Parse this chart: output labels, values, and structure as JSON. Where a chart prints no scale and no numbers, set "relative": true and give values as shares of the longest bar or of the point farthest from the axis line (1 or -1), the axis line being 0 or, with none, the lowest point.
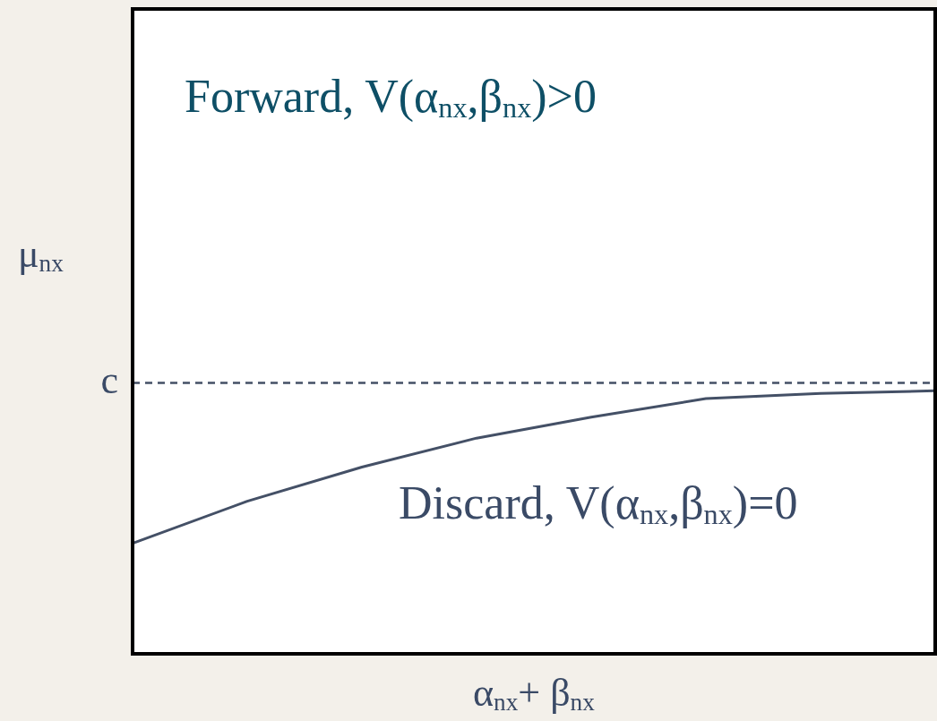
{
  "chart_data": {
    "type": "line",
    "relative": true,
    "xlabel": "α$_{nx}$+ β$_{nx}$",
    "ylabel": "μ$_{nx}$",
    "categories": [
      null,
      null,
      null,
      null,
      null,
      null,
      null,
      null
    ],
    "series": [
      {
        "color": "#445066",
        "values": [
          0.42,
          0.58,
          0.71,
          0.82,
          0.9,
          0.97,
          0.99,
          1.0
        ]
      }
    ],
    "ref_lines": [
      {
        "axis": "y",
        "value": 1.03,
        "label": "c",
        "color": "#445066",
        "line_style": "dashed"
      }
    ],
    "annotations": [
      "Forward, V(α$_{nx}$,β$_{nx}$)>0",
      "Discard, V(α$_{nx}$,β$_{nx}$)=0"
    ],
    "marker": "none",
    "legend": false
  }
}
